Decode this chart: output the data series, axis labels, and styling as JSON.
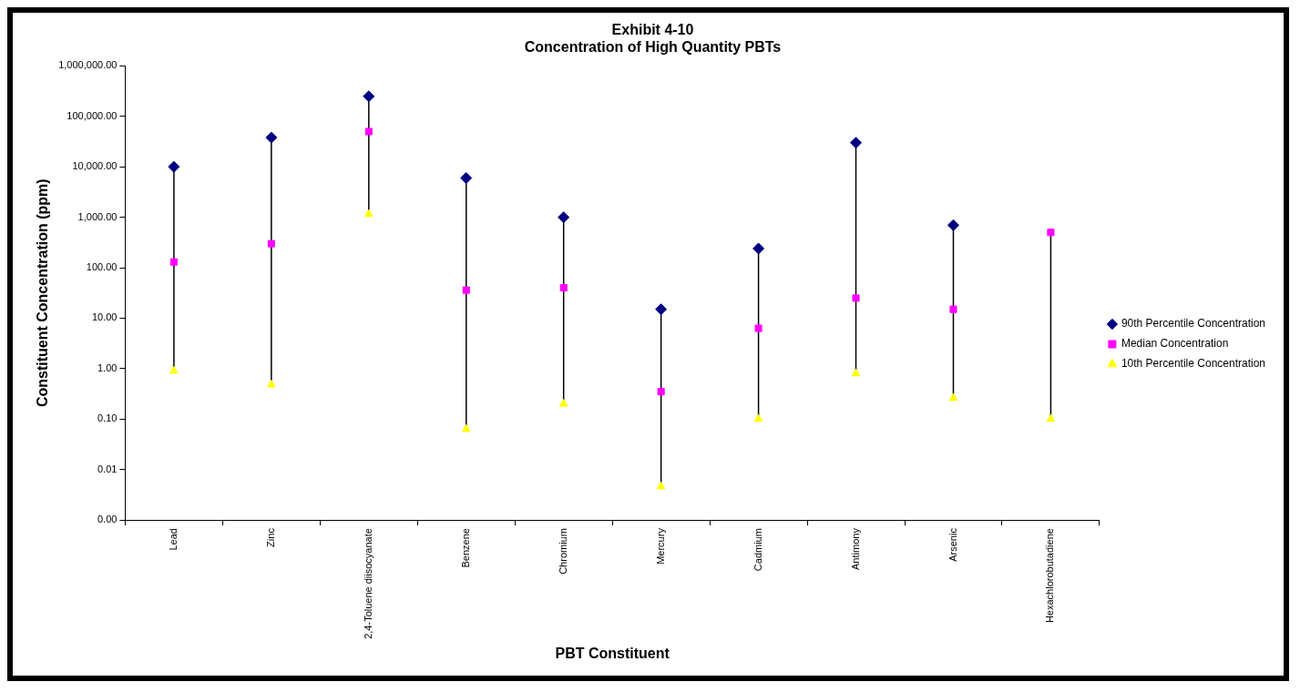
{
  "chart_data": {
    "type": "scatter",
    "title": [
      "Exhibit 4-10",
      "Concentration of High Quantity PBTs"
    ],
    "xlabel": "PBT Constituent",
    "ylabel": "Constituent Concentration (ppm)",
    "categories": [
      "Lead",
      "Zinc",
      "2,4-Toluene diisocyanate",
      "Benzene",
      "Chromium",
      "Mercury",
      "Cadmium",
      "Antimony",
      "Arsenic",
      "Hexachlorobutadiene"
    ],
    "series": [
      {
        "name": "90th Percentile Concentration",
        "color": "#000080",
        "marker": "diamond",
        "values": [
          10000,
          38000,
          250000,
          6000,
          1000,
          15,
          240,
          30000,
          700,
          null
        ]
      },
      {
        "name": "Median Concentration",
        "color": "#ff00ff",
        "marker": "square",
        "values": [
          130,
          300,
          50000,
          36,
          40,
          0.35,
          6.3,
          25,
          15,
          500
        ]
      },
      {
        "name": "10th Percentile Concentration",
        "color": "#ffff00",
        "marker": "triangle",
        "values": [
          0.9,
          0.48,
          1150,
          0.063,
          0.2,
          0.0046,
          0.1,
          0.8,
          0.26,
          0.1
        ]
      }
    ],
    "log": "y",
    "ylim": [
      0.001,
      1000000
    ],
    "yticks": [
      {
        "value": 0.001,
        "label": "0.00"
      },
      {
        "value": 0.01,
        "label": "0.01"
      },
      {
        "value": 0.1,
        "label": "0.10"
      },
      {
        "value": 1,
        "label": "1.00"
      },
      {
        "value": 10,
        "label": "10.00"
      },
      {
        "value": 100,
        "label": "100.00"
      },
      {
        "value": 1000,
        "label": "1,000.00"
      },
      {
        "value": 10000,
        "label": "10,000.00"
      },
      {
        "value": 100000,
        "label": "100,000.00"
      },
      {
        "value": 1000000,
        "label": "1,000,000.00"
      }
    ],
    "grid": false,
    "legend": "right"
  }
}
